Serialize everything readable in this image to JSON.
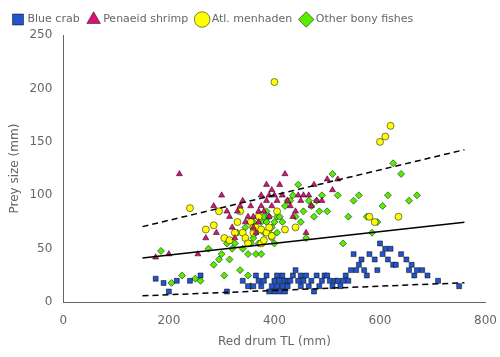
{
  "chart_data": {
    "type": "scatter",
    "xlabel": "Red drum TL (mm)",
    "ylabel": "Prey size (mm)",
    "xlim": [
      0,
      800
    ],
    "ylim": [
      0,
      250
    ],
    "xticks": [
      0,
      200,
      400,
      600,
      800
    ],
    "yticks": [
      0,
      50,
      100,
      150,
      200,
      250
    ],
    "grid": false,
    "legend": "upper left",
    "series": [
      {
        "name": "Blue crab",
        "color": "#2255CC",
        "marker": "square",
        "x": [
          175,
          190,
          200,
          215,
          240,
          260,
          310,
          340,
          350,
          360,
          365,
          370,
          375,
          380,
          385,
          390,
          395,
          400,
          400,
          405,
          405,
          410,
          410,
          415,
          415,
          420,
          420,
          425,
          425,
          430,
          435,
          440,
          445,
          450,
          450,
          455,
          460,
          465,
          470,
          475,
          480,
          485,
          490,
          495,
          500,
          505,
          510,
          515,
          520,
          525,
          530,
          535,
          540,
          545,
          550,
          555,
          560,
          565,
          570,
          575,
          580,
          590,
          595,
          600,
          605,
          610,
          615,
          620,
          625,
          630,
          640,
          650,
          655,
          660,
          665,
          670,
          680,
          690,
          710,
          750
        ],
        "values": [
          22,
          18,
          10,
          20,
          20,
          25,
          10,
          20,
          15,
          15,
          25,
          20,
          15,
          20,
          25,
          10,
          15,
          20,
          10,
          25,
          15,
          20,
          10,
          15,
          25,
          20,
          10,
          15,
          20,
          20,
          25,
          30,
          20,
          25,
          15,
          20,
          25,
          15,
          20,
          10,
          25,
          15,
          20,
          25,
          25,
          20,
          15,
          20,
          20,
          15,
          20,
          25,
          20,
          30,
          45,
          30,
          35,
          40,
          30,
          25,
          45,
          40,
          30,
          55,
          45,
          50,
          40,
          50,
          35,
          35,
          45,
          40,
          30,
          35,
          25,
          30,
          30,
          25,
          20,
          15
        ]
      },
      {
        "name": "Penaeid shrimp",
        "color": "#DD1177",
        "marker": "triangle",
        "x": [
          175,
          200,
          220,
          255,
          270,
          285,
          290,
          300,
          310,
          315,
          320,
          325,
          330,
          335,
          340,
          345,
          350,
          355,
          360,
          360,
          365,
          370,
          370,
          375,
          375,
          380,
          385,
          385,
          390,
          390,
          395,
          395,
          400,
          405,
          410,
          415,
          420,
          425,
          430,
          435,
          440,
          445,
          450,
          455,
          460,
          465,
          470,
          475,
          480,
          490,
          500,
          510,
          520
        ],
        "values": [
          42,
          45,
          120,
          45,
          60,
          90,
          65,
          100,
          85,
          80,
          70,
          60,
          85,
          90,
          95,
          75,
          80,
          90,
          70,
          80,
          65,
          85,
          75,
          100,
          90,
          85,
          110,
          95,
          80,
          100,
          90,
          105,
          100,
          95,
          110,
          100,
          120,
          95,
          90,
          80,
          85,
          100,
          95,
          100,
          65,
          100,
          90,
          110,
          95,
          95,
          115,
          105,
          115
        ]
      },
      {
        "name": "Atl. menhaden",
        "color": "#FFFF00",
        "marker": "circle",
        "x": [
          240,
          270,
          285,
          295,
          305,
          315,
          325,
          330,
          335,
          340,
          345,
          350,
          355,
          360,
          360,
          365,
          370,
          375,
          375,
          380,
          385,
          390,
          395,
          400,
          405,
          420,
          440,
          580,
          590,
          600,
          610,
          620,
          635
        ],
        "values": [
          88,
          68,
          72,
          85,
          60,
          58,
          65,
          75,
          85,
          65,
          60,
          55,
          75,
          65,
          70,
          70,
          80,
          55,
          68,
          58,
          65,
          70,
          62,
          206,
          85,
          68,
          70,
          80,
          75,
          150,
          155,
          165,
          80
        ]
      },
      {
        "name": "Other bony fishes",
        "color": "#55EE00",
        "marker": "diamond",
        "x": [
          185,
          205,
          225,
          250,
          260,
          275,
          285,
          295,
          300,
          305,
          310,
          315,
          320,
          325,
          330,
          335,
          340,
          345,
          350,
          350,
          355,
          355,
          360,
          360,
          365,
          365,
          370,
          370,
          375,
          375,
          380,
          380,
          385,
          385,
          390,
          390,
          395,
          395,
          400,
          400,
          405,
          405,
          410,
          415,
          420,
          425,
          430,
          435,
          440,
          445,
          450,
          455,
          460,
          465,
          470,
          475,
          480,
          485,
          490,
          500,
          510,
          520,
          530,
          540,
          550,
          560,
          575,
          585,
          595,
          605,
          615,
          625,
          640,
          655,
          670
        ],
        "values": [
          48,
          18,
          25,
          22,
          20,
          50,
          35,
          40,
          45,
          25,
          55,
          40,
          50,
          55,
          65,
          30,
          50,
          70,
          45,
          25,
          55,
          15,
          75,
          60,
          45,
          65,
          80,
          55,
          75,
          45,
          65,
          80,
          85,
          75,
          65,
          80,
          70,
          60,
          75,
          55,
          80,
          65,
          80,
          75,
          90,
          95,
          95,
          100,
          80,
          110,
          75,
          85,
          60,
          95,
          90,
          80,
          95,
          85,
          100,
          85,
          120,
          100,
          55,
          80,
          95,
          100,
          80,
          65,
          75,
          90,
          100,
          130,
          120,
          95,
          100
        ]
      },
      {
        "type": "line",
        "color": "#000000",
        "line_style": "solid",
        "x": [
          150,
          760
        ],
        "values": [
          41.25,
          74.8
        ]
      },
      {
        "type": "line",
        "color": "#000000",
        "line_style": "dashed",
        "x": [
          150,
          760
        ],
        "values": [
          70.7,
          142.68
        ]
      },
      {
        "type": "line",
        "color": "#000000",
        "line_style": "dashed",
        "x": [
          150,
          760
        ],
        "values": [
          6,
          18.2
        ]
      }
    ]
  }
}
